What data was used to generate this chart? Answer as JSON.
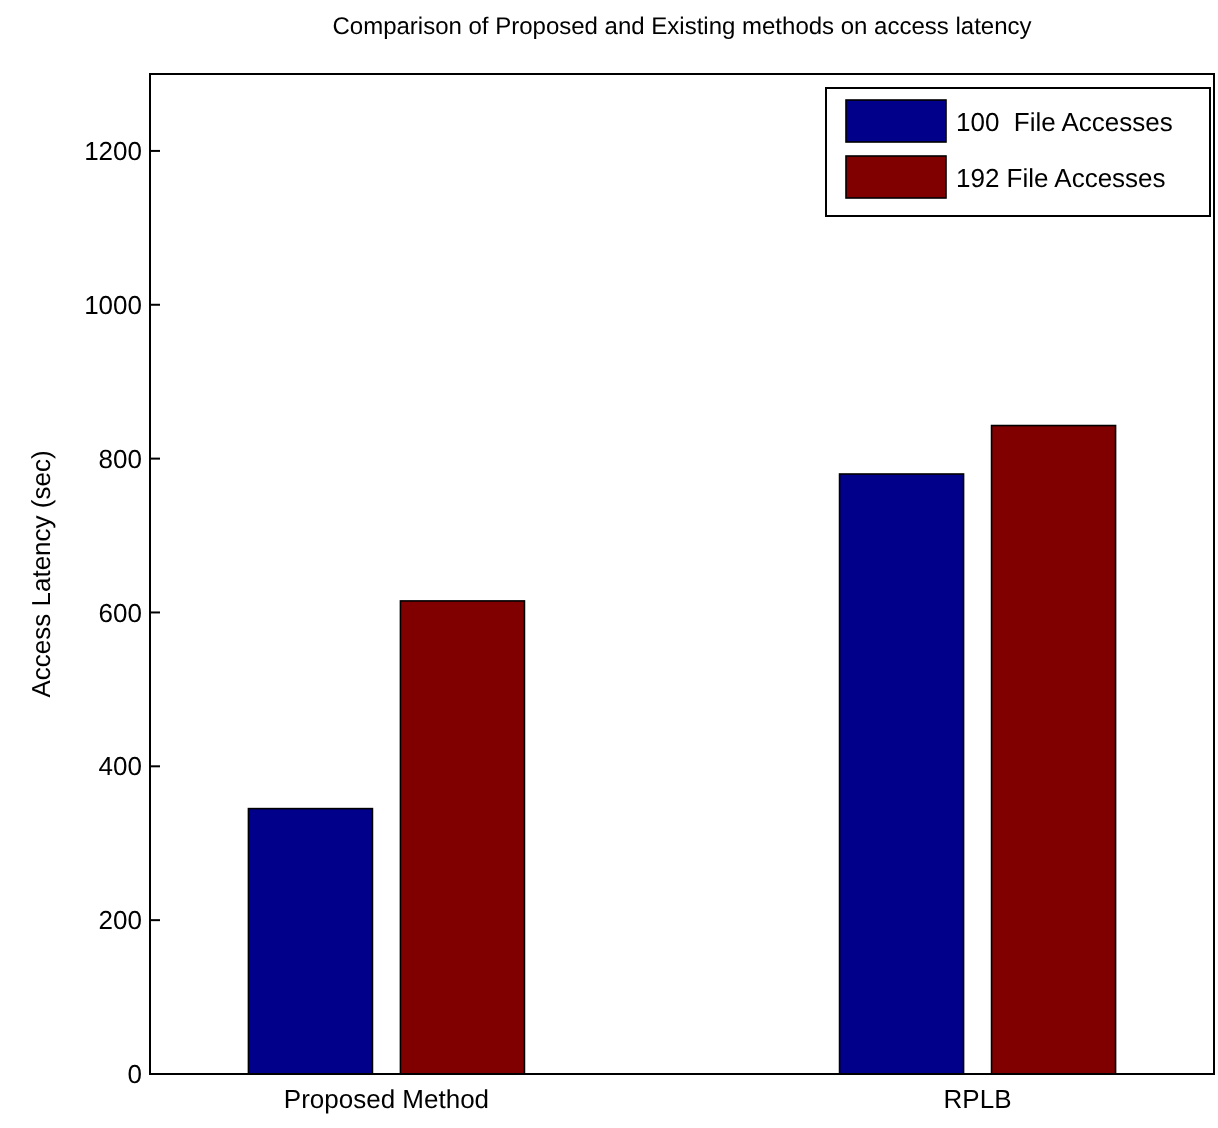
{
  "chart_data": {
    "type": "bar",
    "title": "Comparison of Proposed and Existing methods on access latency",
    "ylabel": "Access Latency (sec)",
    "categories": [
      "Proposed Method",
      "RPLB"
    ],
    "series": [
      {
        "name": "100  File Accesses",
        "color": "#00008b",
        "values": [
          345,
          780
        ]
      },
      {
        "name": "192 File Accesses",
        "color": "#800000",
        "values": [
          615,
          843
        ]
      }
    ],
    "ylim": [
      0,
      1300
    ],
    "yticks": [
      0,
      200,
      400,
      600,
      800,
      1000,
      1200
    ],
    "legend": "top right"
  }
}
